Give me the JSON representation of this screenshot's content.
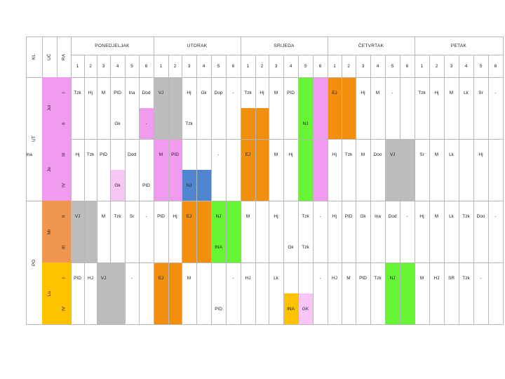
{
  "header": {
    "labels": [
      "Kt.",
      "UČ",
      "RA"
    ],
    "days": [
      "PONEDJELJAK",
      "UTORAK",
      "SRIJEDA",
      "ČETVRTAK",
      "PETAK"
    ],
    "periods": [
      "1",
      "2",
      "3",
      "4",
      "5",
      "6"
    ]
  },
  "shifts": [
    "UT",
    "PO"
  ],
  "teachers": [
    "Jul",
    "Jo",
    "Mr",
    "Lu"
  ],
  "grades": [
    "I",
    "II",
    "III",
    "IV",
    "II",
    "III",
    "I",
    "IV"
  ],
  "colors": {
    "pink": "#f09af0",
    "light_pink": "#f9c6f6",
    "gray": "#bdbdbd",
    "green": "#66f533",
    "orange": "#f28f0c",
    "light_orange": "#f4a05a",
    "salmon": "#ef9650",
    "yellow": "#fdc200",
    "blue": "#4f86cf",
    "white": "#ffffff"
  },
  "cells": [
    {
      "c": 1,
      "r": 1,
      "t": "Tzk"
    },
    {
      "c": 2,
      "r": 1,
      "t": "Hj"
    },
    {
      "c": 3,
      "r": 1,
      "t": "M"
    },
    {
      "c": 4,
      "r": 1,
      "t": "PID"
    },
    {
      "c": 5,
      "r": 1,
      "t": "Ina"
    },
    {
      "c": 6,
      "r": 1,
      "t": "Dod"
    },
    {
      "c": 7,
      "r": 1,
      "t": "VJ"
    },
    {
      "c": 9,
      "r": 1,
      "t": "Hj"
    },
    {
      "c": 10,
      "r": 1,
      "t": "Gk"
    },
    {
      "c": 11,
      "r": 1,
      "t": "Dop"
    },
    {
      "c": 12,
      "r": 1,
      "t": "-"
    },
    {
      "c": 13,
      "r": 1,
      "t": "Tzk"
    },
    {
      "c": 14,
      "r": 1,
      "t": "Hj"
    },
    {
      "c": 15,
      "r": 1,
      "t": "M"
    },
    {
      "c": 16,
      "r": 1,
      "t": "PID"
    },
    {
      "c": 19,
      "r": 1,
      "t": "EJ"
    },
    {
      "c": 21,
      "r": 1,
      "t": "Hj"
    },
    {
      "c": 22,
      "r": 1,
      "t": "M"
    },
    {
      "c": 23,
      "r": 1,
      "t": "-"
    },
    {
      "c": 25,
      "r": 1,
      "t": "Tzk"
    },
    {
      "c": 26,
      "r": 1,
      "t": "Hj"
    },
    {
      "c": 27,
      "r": 1,
      "t": "M"
    },
    {
      "c": 28,
      "r": 1,
      "t": "Lk"
    },
    {
      "c": 29,
      "r": 1,
      "t": "Sr"
    },
    {
      "c": 30,
      "r": 1,
      "t": "-"
    },
    {
      "c": 17,
      "r": 2,
      "t": "NJ"
    },
    {
      "c": 4,
      "r": 2,
      "t": "Gk"
    },
    {
      "c": 6,
      "r": 2,
      "t": "-"
    },
    {
      "c": 9,
      "r": 2,
      "t": "Tzk"
    },
    {
      "c": 1,
      "r": 3,
      "t": "Hj"
    },
    {
      "c": 2,
      "r": 3,
      "t": "Tzk"
    },
    {
      "c": 3,
      "r": 3,
      "t": "PID"
    },
    {
      "c": 5,
      "r": 3,
      "t": "Dod"
    },
    {
      "c": 7,
      "r": 3,
      "t": "M"
    },
    {
      "c": 8,
      "r": 3,
      "t": "PID"
    },
    {
      "c": 11,
      "r": 3,
      "t": "-"
    },
    {
      "c": 13,
      "r": 3,
      "t": "EJ"
    },
    {
      "c": 15,
      "r": 3,
      "t": "M"
    },
    {
      "c": 16,
      "r": 3,
      "t": "Hj"
    },
    {
      "c": 19,
      "r": 3,
      "t": "Hj"
    },
    {
      "c": 20,
      "r": 3,
      "t": "Tzk"
    },
    {
      "c": 21,
      "r": 3,
      "t": "M"
    },
    {
      "c": 22,
      "r": 3,
      "t": "Doo"
    },
    {
      "c": 23,
      "r": 3,
      "t": "VJ"
    },
    {
      "c": 25,
      "r": 3,
      "t": "Sr"
    },
    {
      "c": 26,
      "r": 3,
      "t": "M"
    },
    {
      "c": 27,
      "r": 3,
      "t": "Lk"
    },
    {
      "c": 29,
      "r": 3,
      "t": "Hj"
    },
    {
      "c": 31,
      "r": 3,
      "t": "Ina"
    },
    {
      "c": 4,
      "r": 4,
      "t": "Gk"
    },
    {
      "c": 6,
      "r": 4,
      "t": "PID"
    },
    {
      "c": 9,
      "r": 4,
      "t": "NJ"
    },
    {
      "c": 1,
      "r": 5,
      "t": "VJ"
    },
    {
      "c": 3,
      "r": 5,
      "t": "M"
    },
    {
      "c": 4,
      "r": 5,
      "t": "Tzk"
    },
    {
      "c": 5,
      "r": 5,
      "t": "Sr"
    },
    {
      "c": 6,
      "r": 5,
      "t": "-"
    },
    {
      "c": 7,
      "r": 5,
      "t": "PID"
    },
    {
      "c": 8,
      "r": 5,
      "t": "Hj"
    },
    {
      "c": 9,
      "r": 5,
      "t": "EJ"
    },
    {
      "c": 11,
      "r": 5,
      "t": "NJ"
    },
    {
      "c": 13,
      "r": 5,
      "t": "M"
    },
    {
      "c": 15,
      "r": 5,
      "t": "Hj"
    },
    {
      "c": 17,
      "r": 5,
      "t": "Tzk"
    },
    {
      "c": 18,
      "r": 5,
      "t": "-"
    },
    {
      "c": 19,
      "r": 5,
      "t": "Hj"
    },
    {
      "c": 20,
      "r": 5,
      "t": "PID"
    },
    {
      "c": 21,
      "r": 5,
      "t": "Gk"
    },
    {
      "c": 22,
      "r": 5,
      "t": "Ina"
    },
    {
      "c": 23,
      "r": 5,
      "t": "Dod"
    },
    {
      "c": 24,
      "r": 5,
      "t": "-"
    },
    {
      "c": 25,
      "r": 5,
      "t": "Hj"
    },
    {
      "c": 26,
      "r": 5,
      "t": "M"
    },
    {
      "c": 27,
      "r": 5,
      "t": "Lk"
    },
    {
      "c": 28,
      "r": 5,
      "t": "Tzk"
    },
    {
      "c": 29,
      "r": 5,
      "t": "Doo"
    },
    {
      "c": 30,
      "r": 5,
      "t": "-"
    },
    {
      "c": 11,
      "r": 6,
      "t": "INA"
    },
    {
      "c": 16,
      "r": 6,
      "t": "Gk"
    },
    {
      "c": 17,
      "r": 6,
      "t": "Tzk"
    },
    {
      "c": 1,
      "r": 7,
      "t": "PID"
    },
    {
      "c": 2,
      "r": 7,
      "t": "HJ"
    },
    {
      "c": 3,
      "r": 7,
      "t": "VJ"
    },
    {
      "c": 5,
      "r": 7,
      "t": "-"
    },
    {
      "c": 7,
      "r": 7,
      "t": "EJ"
    },
    {
      "c": 9,
      "r": 7,
      "t": "M"
    },
    {
      "c": 12,
      "r": 7,
      "t": "-"
    },
    {
      "c": 13,
      "r": 7,
      "t": "HJ"
    },
    {
      "c": 15,
      "r": 7,
      "t": "Lk"
    },
    {
      "c": 18,
      "r": 7,
      "t": "-"
    },
    {
      "c": 19,
      "r": 7,
      "t": "HJ"
    },
    {
      "c": 20,
      "r": 7,
      "t": "M"
    },
    {
      "c": 21,
      "r": 7,
      "t": "PID"
    },
    {
      "c": 22,
      "r": 7,
      "t": "Tzk"
    },
    {
      "c": 23,
      "r": 7,
      "t": "NJ"
    },
    {
      "c": 25,
      "r": 7,
      "t": "M"
    },
    {
      "c": 26,
      "r": 7,
      "t": "HJ"
    },
    {
      "c": 27,
      "r": 7,
      "t": "SR"
    },
    {
      "c": 28,
      "r": 7,
      "t": "Tzk"
    },
    {
      "c": 29,
      "r": 7,
      "t": "-"
    },
    {
      "c": 11,
      "r": 8,
      "t": "PID"
    },
    {
      "c": 16,
      "r": 8,
      "t": "INA"
    },
    {
      "c": 17,
      "r": 8,
      "t": "GK"
    }
  ]
}
